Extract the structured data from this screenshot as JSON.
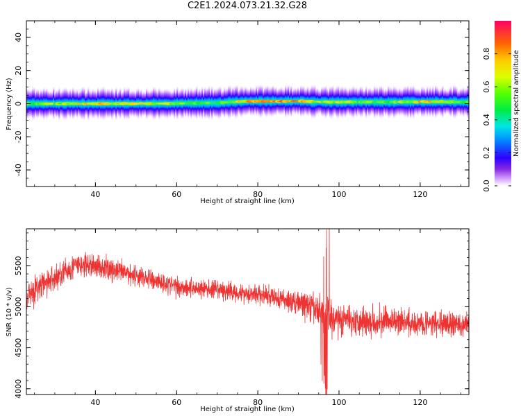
{
  "title": "C2E1.2024.073.21.32.G28",
  "chart_data": [
    {
      "type": "heatmap",
      "xlabel": "Height of straight line (km)",
      "ylabel": "Frequency (Hz)",
      "xlim": [
        23,
        132
      ],
      "ylim": [
        -50,
        50
      ],
      "xticks": [
        40,
        60,
        80,
        100,
        120
      ],
      "yticks": [
        -40,
        -20,
        0,
        20,
        40
      ],
      "colorbar": {
        "label": "Normalized spectral amplitude",
        "range": [
          0,
          1
        ],
        "ticks": [
          0.0,
          0.2,
          0.4,
          0.6,
          0.8
        ],
        "tick_labels": [
          "0.0",
          "0.2",
          "0.4",
          "0.6",
          "0.8"
        ],
        "colormap": "rainbow-purple-to-red"
      },
      "ridge": {
        "heights_km": [
          23,
          40,
          55,
          70,
          77,
          90,
          96,
          100,
          112,
          122,
          132
        ],
        "freq_hz": [
          0.0,
          0.0,
          0.0,
          0.5,
          1.5,
          1.5,
          1.0,
          1.0,
          1.0,
          1.2,
          1.0
        ],
        "peak_amplitude": [
          0.6,
          0.8,
          0.75,
          0.55,
          0.8,
          0.95,
          0.7,
          0.7,
          0.6,
          0.85,
          0.6
        ]
      }
    },
    {
      "type": "line",
      "xlabel": "Height of straight line (km)",
      "ylabel": "SNR (10 * v/v)",
      "xlim": [
        23,
        132
      ],
      "ylim": [
        3930,
        5950
      ],
      "xticks": [
        40,
        60,
        80,
        100,
        120
      ],
      "yticks": [
        4000,
        4500,
        5000,
        5500
      ],
      "series": [
        {
          "color": "#ee3333",
          "envelope_x": [
            23,
            30,
            35,
            40,
            50,
            60,
            70,
            80,
            90,
            95,
            97,
            100,
            110,
            120,
            132
          ],
          "envelope_mean": [
            5150,
            5350,
            5500,
            5500,
            5380,
            5250,
            5200,
            5150,
            5050,
            4950,
            4900,
            4850,
            4820,
            4800,
            4780
          ],
          "envelope_spread": [
            250,
            230,
            220,
            200,
            180,
            170,
            160,
            170,
            200,
            300,
            500,
            260,
            240,
            220,
            200
          ]
        }
      ]
    }
  ]
}
